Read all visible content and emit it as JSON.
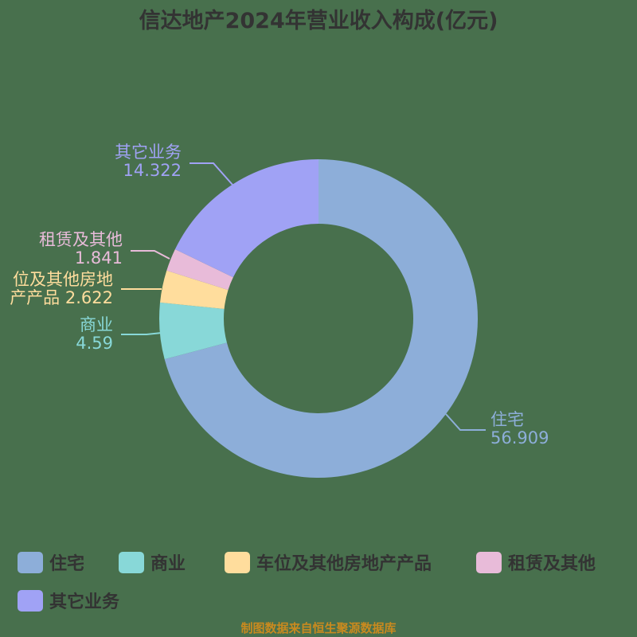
{
  "title": "信达地产2024年营业收入构成(亿元)",
  "footer": "制图数据来自恒生聚源数据库",
  "labels": {
    "zhuzhai": {
      "name": "住宅",
      "value": "56.909"
    },
    "shangye": {
      "name": "商业",
      "value": "4.59"
    },
    "chewei": {
      "name_line1": "位及其他房地",
      "name_line2": "产产品",
      "value": "2.622"
    },
    "zulin": {
      "name": "租赁及其他",
      "value": "1.841"
    },
    "qita": {
      "name": "其它业务",
      "value": "14.322"
    }
  },
  "legend": [
    {
      "label": "住宅",
      "color": "#8daed9"
    },
    {
      "label": "商业",
      "color": "#88d8d8"
    },
    {
      "label": "车位及其他房地产产品",
      "color": "#ffdd9d"
    },
    {
      "label": "租赁及其他",
      "color": "#e8bbd9"
    },
    {
      "label": "其它业务",
      "color": "#a0a2f5"
    }
  ],
  "colors": {
    "background": "#48704d",
    "title": "#333333",
    "footer": "#c98a1f"
  },
  "chart_data": {
    "type": "pie",
    "subtype": "donut",
    "title": "信达地产2024年营业收入构成(亿元)",
    "unit": "亿元",
    "categories": [
      "住宅",
      "商业",
      "车位及其他房地产产品",
      "租赁及其他",
      "其它业务"
    ],
    "values": [
      56.909,
      4.59,
      2.622,
      1.841,
      14.322
    ],
    "colors": [
      "#8daed9",
      "#88d8d8",
      "#ffdd9d",
      "#e8bbd9",
      "#a0a2f5"
    ],
    "start_angle": 90,
    "direction": "clockwise",
    "inner_radius_ratio": 0.6,
    "legend_position": "bottom",
    "source_note": "制图数据来自恒生聚源数据库"
  }
}
